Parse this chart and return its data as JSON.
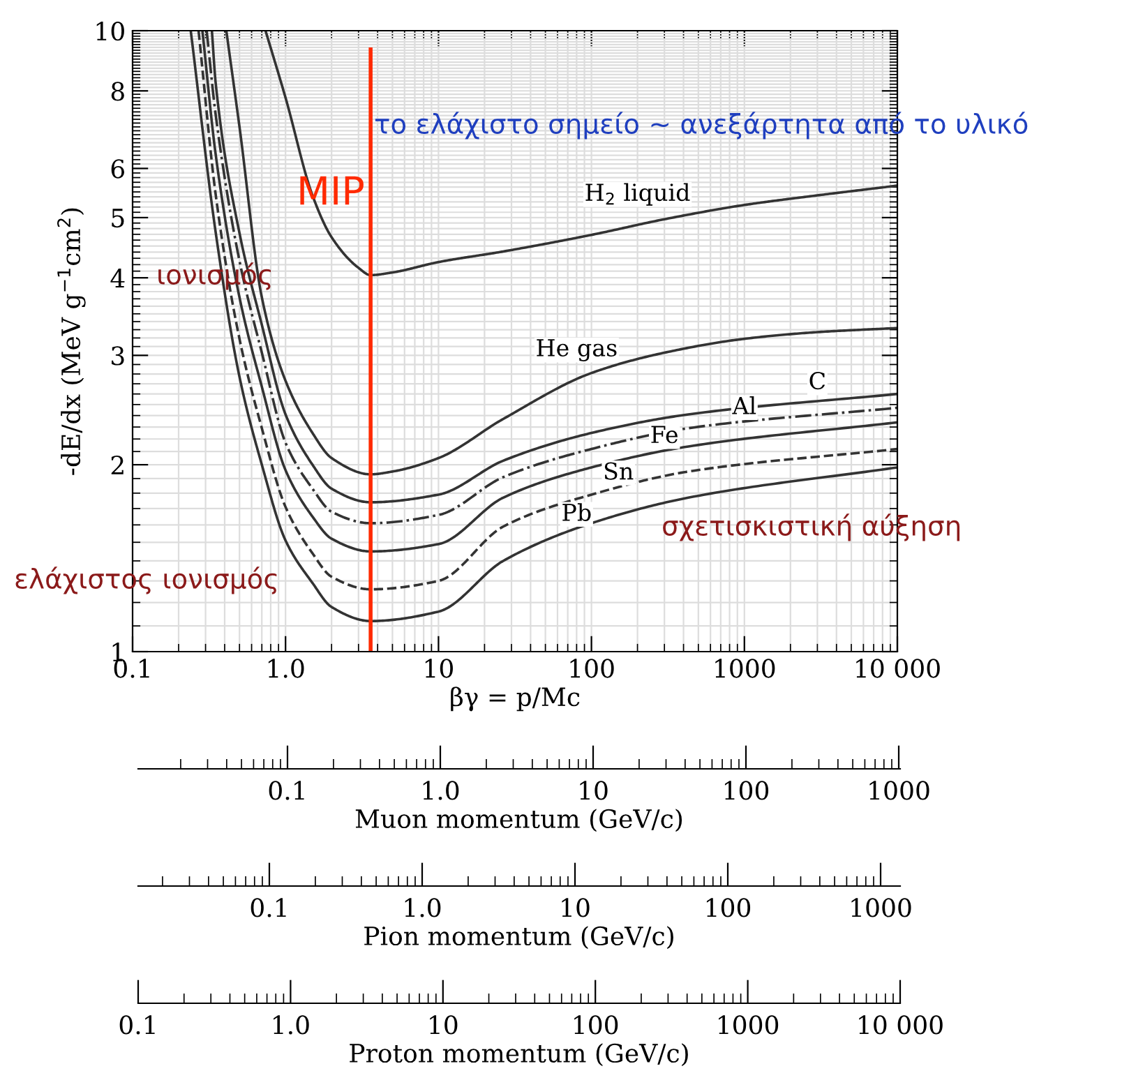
{
  "chart_data": [
    {
      "type": "line",
      "xlabel": "βγ = p/Mc",
      "ylabel": "-dE/dx (MeV g$^{−1}$cm$^{2}$)",
      "log": "xy",
      "grid": true,
      "legend": false,
      "marker": "none",
      "xlim": [
        0.1,
        10000
      ],
      "ylim": [
        1,
        10
      ],
      "xticks": [
        0.1,
        {
          "value": 1,
          "label": "1.0"
        },
        10,
        100,
        1000,
        {
          "value": 10000,
          "label": "10 000"
        }
      ],
      "yticks": [
        1,
        2,
        3,
        4,
        5,
        6,
        8,
        10
      ],
      "series": [
        {
          "name": "H$_{2}$ liquid",
          "color": "#333333",
          "line_style": "solid",
          "x": [
            0.74,
            1,
            1.5,
            2,
            3,
            3.6,
            5,
            10,
            26.5,
            100,
            300,
            1000,
            3000,
            10000
          ],
          "values": [
            10,
            7.8,
            5.43,
            4.65,
            4.15,
            4.04,
            4.08,
            4.24,
            4.41,
            4.69,
            4.97,
            5.24,
            5.43,
            5.63
          ]
        },
        {
          "name": "He gas",
          "color": "#333333",
          "line_style": "solid",
          "x": [
            0.41,
            0.5,
            0.7,
            1,
            1.5,
            2,
            3.6,
            5,
            10,
            26.5,
            100,
            300,
            1000,
            3000,
            10000
          ],
          "values": [
            10,
            7.0,
            3.72,
            2.73,
            2.25,
            2.05,
            1.93,
            1.95,
            2.05,
            2.37,
            2.81,
            3.03,
            3.19,
            3.27,
            3.32
          ]
        },
        {
          "name": "C",
          "color": "#333333",
          "line_style": "solid",
          "x": [
            0.33,
            0.35,
            0.5,
            0.7,
            1,
            1.5,
            2,
            3.6,
            10,
            26.5,
            100,
            430,
            10000
          ],
          "values": [
            10,
            8.2,
            4.72,
            3.36,
            2.41,
            2.0,
            1.83,
            1.74,
            1.79,
            2.03,
            2.25,
            2.41,
            2.6
          ]
        },
        {
          "name": "Al",
          "color": "#333333",
          "line_style": "dashdot",
          "x": [
            0.305,
            0.35,
            0.5,
            0.7,
            1,
            1.5,
            2,
            3.6,
            10,
            26.5,
            100,
            430,
            10000
          ],
          "values": [
            10,
            7.3,
            4.26,
            3.03,
            2.17,
            1.83,
            1.68,
            1.61,
            1.66,
            1.91,
            2.12,
            2.29,
            2.47
          ]
        },
        {
          "name": "Fe",
          "color": "#333333",
          "line_style": "solid",
          "x": [
            0.286,
            0.35,
            0.5,
            0.7,
            1,
            1.5,
            2,
            3.6,
            10,
            26.5,
            100,
            430,
            10000
          ],
          "values": [
            10,
            6.3,
            3.72,
            2.67,
            1.96,
            1.65,
            1.52,
            1.45,
            1.49,
            1.77,
            1.98,
            2.14,
            2.34
          ]
        },
        {
          "name": "Sn",
          "color": "#333333",
          "line_style": "dashed",
          "x": [
            0.27,
            0.35,
            0.5,
            0.7,
            1,
            1.5,
            2,
            3.6,
            10,
            26.5,
            100,
            430,
            10000
          ],
          "values": [
            10,
            5.43,
            3.19,
            2.29,
            1.71,
            1.44,
            1.32,
            1.26,
            1.3,
            1.59,
            1.79,
            1.95,
            2.12
          ]
        },
        {
          "name": "Pb",
          "color": "#333333",
          "line_style": "solid",
          "x": [
            0.24,
            0.35,
            0.5,
            0.7,
            1,
            1.5,
            2,
            3.6,
            10,
            26.5,
            100,
            430,
            10000
          ],
          "values": [
            10,
            4.72,
            2.77,
            2.0,
            1.51,
            1.29,
            1.18,
            1.12,
            1.16,
            1.4,
            1.61,
            1.77,
            1.98
          ]
        }
      ],
      "ref_lines": [
        {
          "axis": "x",
          "value": 3.6,
          "label": "MIP",
          "color": "#ff2a00",
          "line_style": "solid"
        }
      ],
      "annotations": [
        "το ελάχιστο σημείο ~ ανεξάρτητα από το υλικό",
        "ιονισμός",
        "ελάχιστος ιονισμός",
        "σχετισκιστική αύξηση"
      ]
    },
    {
      "type": "other",
      "xlabel": "Muon momentum (GeV/c)",
      "annotations": [
        "0.1",
        "1.0",
        "10",
        "100",
        "1000"
      ]
    },
    {
      "type": "other",
      "xlabel": "Pion momentum (GeV/c)",
      "annotations": [
        "0.1",
        "1.0",
        "10",
        "100",
        "1000"
      ]
    },
    {
      "type": "other",
      "xlabel": "Proton momentum (GeV/c)",
      "annotations": [
        "0.1",
        "1.0",
        "10",
        "100",
        "1000",
        "10 000"
      ]
    }
  ]
}
